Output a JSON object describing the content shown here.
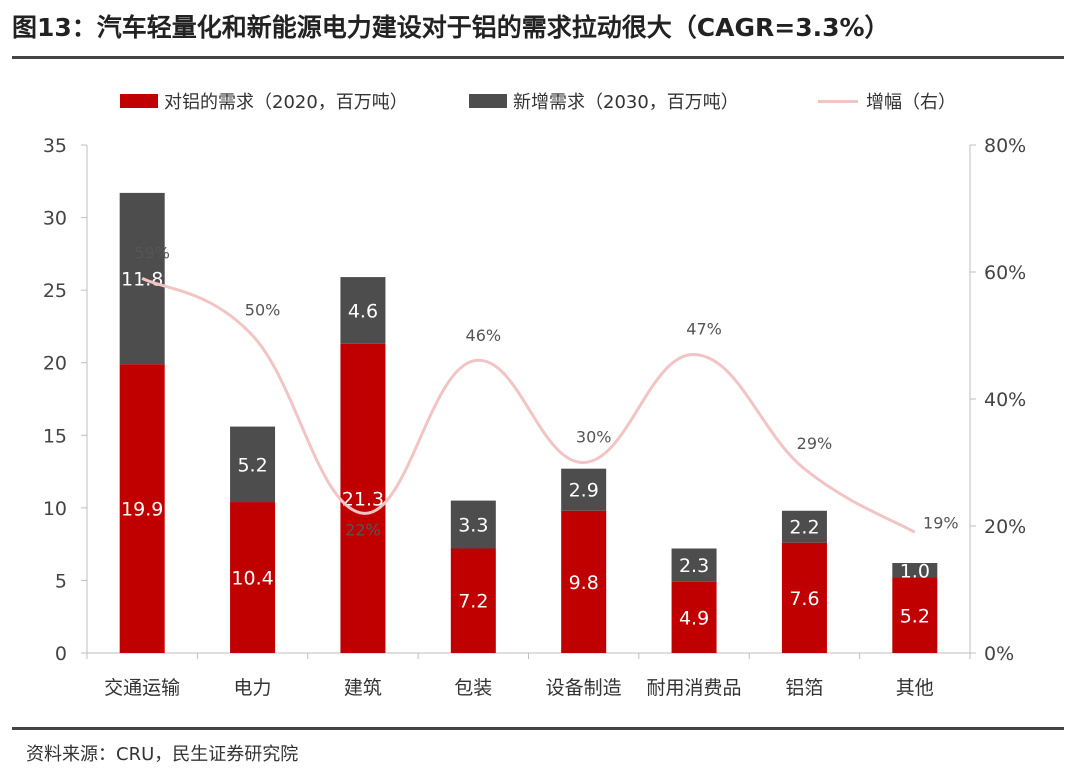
{
  "title": "图13：汽车轻量化和新能源电力建设对于铝的需求拉动很大（CAGR=3.3%）",
  "source": "资料来源：CRU，民生证券研究院",
  "legend": {
    "series1": "对铝的需求（2020，百万吨）",
    "series2": "新增需求（2030，百万吨）",
    "series3": "增幅（右）"
  },
  "colors": {
    "demand2020": "#c00000",
    "new2030": "#4d4d4d",
    "growth": "#f2c4c4"
  },
  "chart_data": {
    "type": "bar",
    "stacked": true,
    "categories": [
      "交通运输",
      "电力",
      "建筑",
      "包装",
      "设备制造",
      "耐用消费品",
      "铝箔",
      "其他"
    ],
    "series": [
      {
        "name": "对铝的需求（2020，百万吨）",
        "values": [
          19.9,
          10.4,
          21.3,
          7.2,
          9.8,
          4.9,
          7.6,
          5.2
        ],
        "color": "#c00000"
      },
      {
        "name": "新增需求（2030，百万吨）",
        "values": [
          11.8,
          5.2,
          4.6,
          3.3,
          2.9,
          2.3,
          2.2,
          1.0
        ],
        "color": "#4d4d4d"
      },
      {
        "name": "增幅（右）",
        "type": "line",
        "axis": "right",
        "values": [
          59,
          50,
          22,
          46,
          30,
          47,
          29,
          19
        ],
        "value_labels": [
          "59%",
          "50%",
          "22%",
          "46%",
          "30%",
          "47%",
          "29%",
          "19%"
        ],
        "color": "#f2c4c4"
      }
    ],
    "ylim": [
      0,
      35
    ],
    "yticks": [
      "0",
      "5",
      "10",
      "15",
      "20",
      "25",
      "30",
      "35"
    ],
    "y2lim": [
      0,
      80
    ],
    "y2ticks": [
      "0%",
      "20%",
      "40%",
      "60%",
      "80%"
    ],
    "legend_position": "top",
    "grid": false
  }
}
